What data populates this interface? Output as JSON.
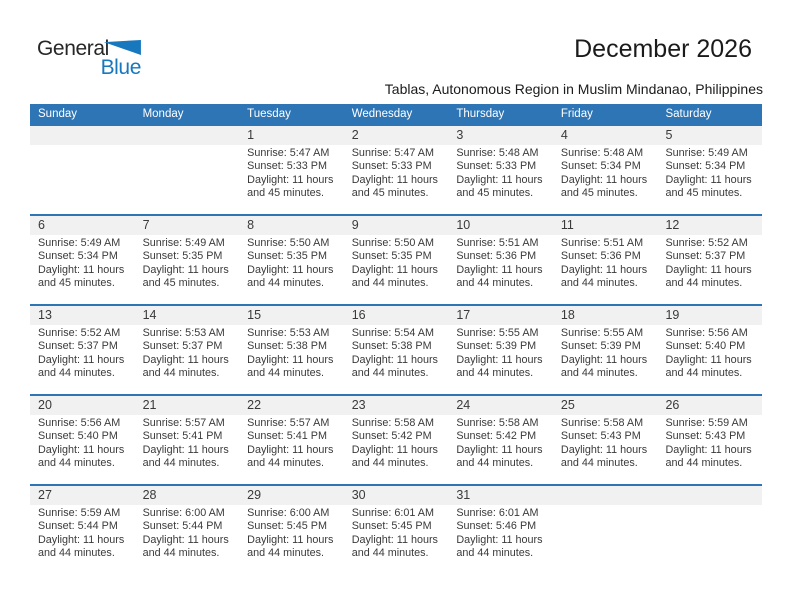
{
  "logo": {
    "part1": "General",
    "part2": "Blue"
  },
  "header": {
    "title": "December 2026",
    "subtitle": "Tablas, Autonomous Region in Muslim Mindanao, Philippines"
  },
  "colors": {
    "header_bar_blue": "#2E75B6",
    "row_border_blue": "#2E75B6",
    "number_band_gray": "#F1F1F2",
    "logo_blue": "#1878BE",
    "body_text": "#3A3A3A"
  },
  "calendar": {
    "weekdays": [
      "Sunday",
      "Monday",
      "Tuesday",
      "Wednesday",
      "Thursday",
      "Friday",
      "Saturday"
    ],
    "weeks": [
      {
        "cells": [
          null,
          null,
          {
            "day": "1",
            "lines": [
              "Sunrise: 5:47 AM",
              "Sunset: 5:33 PM",
              "Daylight: 11 hours",
              "and 45 minutes."
            ]
          },
          {
            "day": "2",
            "lines": [
              "Sunrise: 5:47 AM",
              "Sunset: 5:33 PM",
              "Daylight: 11 hours",
              "and 45 minutes."
            ]
          },
          {
            "day": "3",
            "lines": [
              "Sunrise: 5:48 AM",
              "Sunset: 5:33 PM",
              "Daylight: 11 hours",
              "and 45 minutes."
            ]
          },
          {
            "day": "4",
            "lines": [
              "Sunrise: 5:48 AM",
              "Sunset: 5:34 PM",
              "Daylight: 11 hours",
              "and 45 minutes."
            ]
          },
          {
            "day": "5",
            "lines": [
              "Sunrise: 5:49 AM",
              "Sunset: 5:34 PM",
              "Daylight: 11 hours",
              "and 45 minutes."
            ]
          }
        ]
      },
      {
        "cells": [
          {
            "day": "6",
            "lines": [
              "Sunrise: 5:49 AM",
              "Sunset: 5:34 PM",
              "Daylight: 11 hours",
              "and 45 minutes."
            ]
          },
          {
            "day": "7",
            "lines": [
              "Sunrise: 5:49 AM",
              "Sunset: 5:35 PM",
              "Daylight: 11 hours",
              "and 45 minutes."
            ]
          },
          {
            "day": "8",
            "lines": [
              "Sunrise: 5:50 AM",
              "Sunset: 5:35 PM",
              "Daylight: 11 hours",
              "and 44 minutes."
            ]
          },
          {
            "day": "9",
            "lines": [
              "Sunrise: 5:50 AM",
              "Sunset: 5:35 PM",
              "Daylight: 11 hours",
              "and 44 minutes."
            ]
          },
          {
            "day": "10",
            "lines": [
              "Sunrise: 5:51 AM",
              "Sunset: 5:36 PM",
              "Daylight: 11 hours",
              "and 44 minutes."
            ]
          },
          {
            "day": "11",
            "lines": [
              "Sunrise: 5:51 AM",
              "Sunset: 5:36 PM",
              "Daylight: 11 hours",
              "and 44 minutes."
            ]
          },
          {
            "day": "12",
            "lines": [
              "Sunrise: 5:52 AM",
              "Sunset: 5:37 PM",
              "Daylight: 11 hours",
              "and 44 minutes."
            ]
          }
        ]
      },
      {
        "cells": [
          {
            "day": "13",
            "lines": [
              "Sunrise: 5:52 AM",
              "Sunset: 5:37 PM",
              "Daylight: 11 hours",
              "and 44 minutes."
            ]
          },
          {
            "day": "14",
            "lines": [
              "Sunrise: 5:53 AM",
              "Sunset: 5:37 PM",
              "Daylight: 11 hours",
              "and 44 minutes."
            ]
          },
          {
            "day": "15",
            "lines": [
              "Sunrise: 5:53 AM",
              "Sunset: 5:38 PM",
              "Daylight: 11 hours",
              "and 44 minutes."
            ]
          },
          {
            "day": "16",
            "lines": [
              "Sunrise: 5:54 AM",
              "Sunset: 5:38 PM",
              "Daylight: 11 hours",
              "and 44 minutes."
            ]
          },
          {
            "day": "17",
            "lines": [
              "Sunrise: 5:55 AM",
              "Sunset: 5:39 PM",
              "Daylight: 11 hours",
              "and 44 minutes."
            ]
          },
          {
            "day": "18",
            "lines": [
              "Sunrise: 5:55 AM",
              "Sunset: 5:39 PM",
              "Daylight: 11 hours",
              "and 44 minutes."
            ]
          },
          {
            "day": "19",
            "lines": [
              "Sunrise: 5:56 AM",
              "Sunset: 5:40 PM",
              "Daylight: 11 hours",
              "and 44 minutes."
            ]
          }
        ]
      },
      {
        "cells": [
          {
            "day": "20",
            "lines": [
              "Sunrise: 5:56 AM",
              "Sunset: 5:40 PM",
              "Daylight: 11 hours",
              "and 44 minutes."
            ]
          },
          {
            "day": "21",
            "lines": [
              "Sunrise: 5:57 AM",
              "Sunset: 5:41 PM",
              "Daylight: 11 hours",
              "and 44 minutes."
            ]
          },
          {
            "day": "22",
            "lines": [
              "Sunrise: 5:57 AM",
              "Sunset: 5:41 PM",
              "Daylight: 11 hours",
              "and 44 minutes."
            ]
          },
          {
            "day": "23",
            "lines": [
              "Sunrise: 5:58 AM",
              "Sunset: 5:42 PM",
              "Daylight: 11 hours",
              "and 44 minutes."
            ]
          },
          {
            "day": "24",
            "lines": [
              "Sunrise: 5:58 AM",
              "Sunset: 5:42 PM",
              "Daylight: 11 hours",
              "and 44 minutes."
            ]
          },
          {
            "day": "25",
            "lines": [
              "Sunrise: 5:58 AM",
              "Sunset: 5:43 PM",
              "Daylight: 11 hours",
              "and 44 minutes."
            ]
          },
          {
            "day": "26",
            "lines": [
              "Sunrise: 5:59 AM",
              "Sunset: 5:43 PM",
              "Daylight: 11 hours",
              "and 44 minutes."
            ]
          }
        ]
      },
      {
        "cells": [
          {
            "day": "27",
            "lines": [
              "Sunrise: 5:59 AM",
              "Sunset: 5:44 PM",
              "Daylight: 11 hours",
              "and 44 minutes."
            ]
          },
          {
            "day": "28",
            "lines": [
              "Sunrise: 6:00 AM",
              "Sunset: 5:44 PM",
              "Daylight: 11 hours",
              "and 44 minutes."
            ]
          },
          {
            "day": "29",
            "lines": [
              "Sunrise: 6:00 AM",
              "Sunset: 5:45 PM",
              "Daylight: 11 hours",
              "and 44 minutes."
            ]
          },
          {
            "day": "30",
            "lines": [
              "Sunrise: 6:01 AM",
              "Sunset: 5:45 PM",
              "Daylight: 11 hours",
              "and 44 minutes."
            ]
          },
          {
            "day": "31",
            "lines": [
              "Sunrise: 6:01 AM",
              "Sunset: 5:46 PM",
              "Daylight: 11 hours",
              "and 44 minutes."
            ]
          },
          null,
          null
        ]
      }
    ]
  }
}
